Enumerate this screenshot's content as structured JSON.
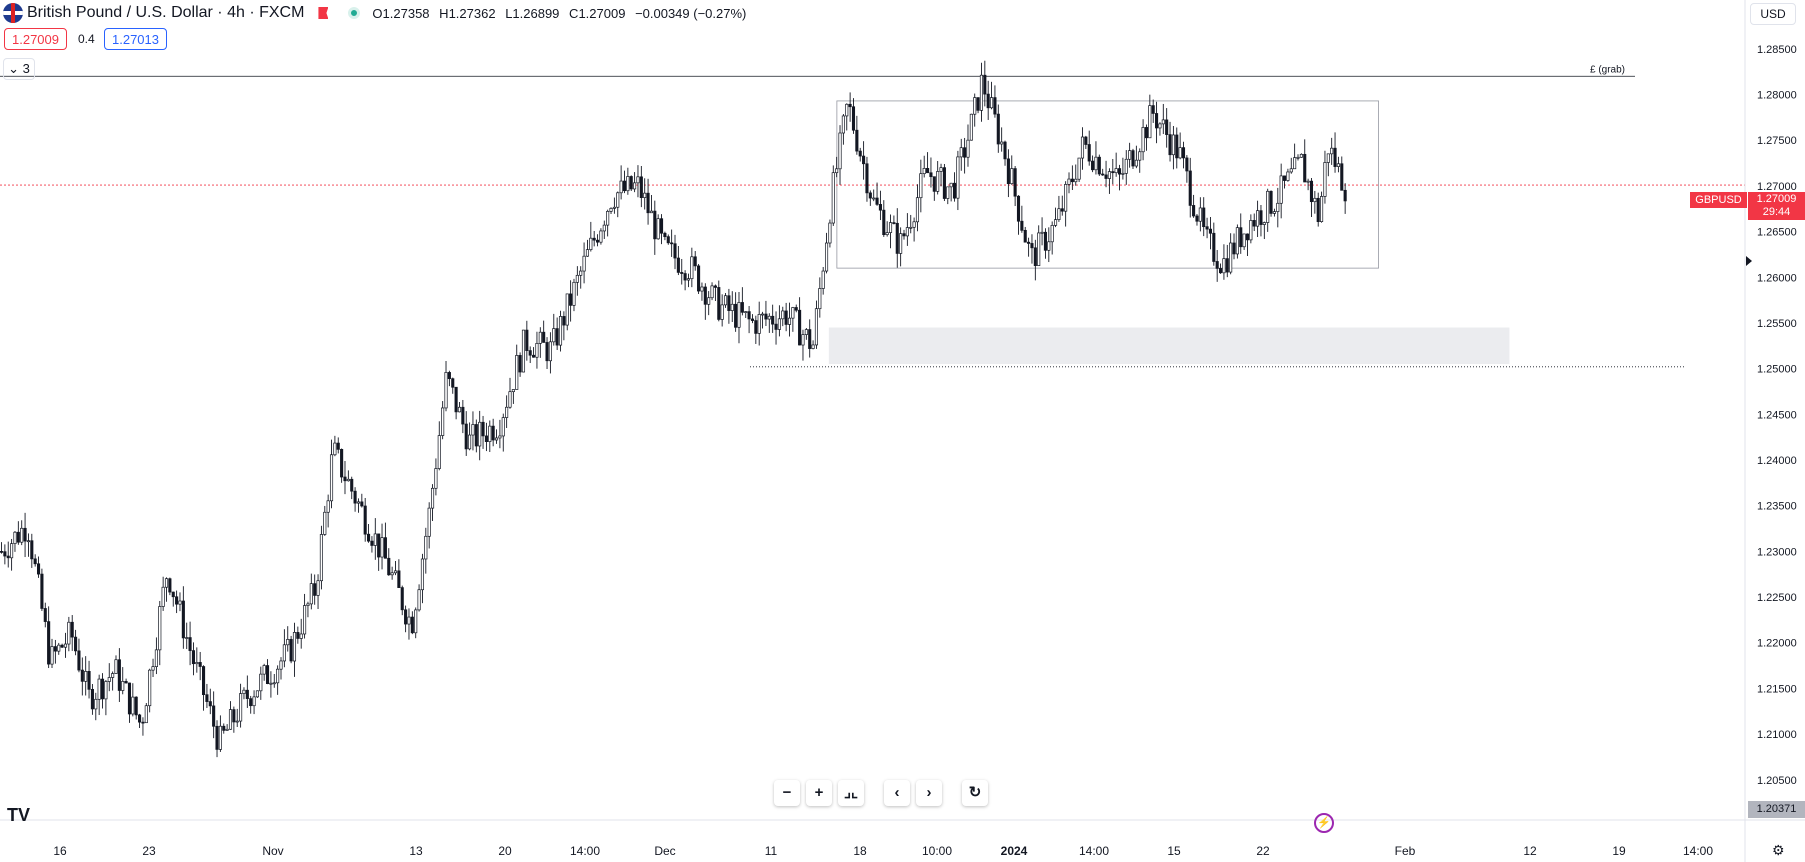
{
  "header": {
    "title": "British Pound / U.S. Dollar · 4h · FXCM",
    "ohlc": [
      {
        "k": "O",
        "v": "1.27358"
      },
      {
        "k": "H",
        "v": "1.27362"
      },
      {
        "k": "L",
        "v": "1.26899"
      },
      {
        "k": "C",
        "v": "1.27009"
      }
    ],
    "change": "−0.00349 (−0.27%)",
    "sell_price": "1.27009",
    "spread": "0.4",
    "buy_price": "1.27013",
    "indicators_count": "3",
    "currency": "USD"
  },
  "badges": {
    "symbol": "GBPUSD",
    "last_price": "1.27009",
    "countdown": "29:44",
    "low_price": "1.20371"
  },
  "drawings": {
    "level_label": "£ (grab)"
  },
  "nav": {
    "zoom_out": "−",
    "zoom_in": "+",
    "reset_scale": "⌟⌞",
    "scroll_left": "‹",
    "scroll_right": "›",
    "reset": "↻"
  },
  "colors": {
    "candle": "#131722",
    "last_price": "#f23645",
    "zone_fill": "#ebecef",
    "range_border": "#9598a1",
    "grid_text": "#131722"
  },
  "chart_data": {
    "type": "candlestick",
    "symbol": "GBPUSD",
    "timeframe": "4h",
    "y_ticks": [
      1.285,
      1.28,
      1.275,
      1.27,
      1.265,
      1.26,
      1.255,
      1.25,
      1.245,
      1.24,
      1.235,
      1.23,
      1.225,
      1.22,
      1.215,
      1.21,
      1.205
    ],
    "ylim": [
      1.2006,
      1.2875
    ],
    "x_labels": [
      "16",
      "23",
      "Nov",
      "13",
      "20",
      "14:00",
      "Dec",
      "11",
      "18",
      "10:00",
      "2024",
      "14:00",
      "15",
      "22",
      "Feb",
      "12",
      "19",
      "14:00"
    ],
    "close_path": [
      [
        0,
        1.23
      ],
      [
        0.015,
        1.233
      ],
      [
        0.028,
        1.218
      ],
      [
        0.04,
        1.221
      ],
      [
        0.05,
        1.214
      ],
      [
        0.065,
        1.217
      ],
      [
        0.08,
        1.211
      ],
      [
        0.095,
        1.228
      ],
      [
        0.11,
        1.218
      ],
      [
        0.125,
        1.209
      ],
      [
        0.14,
        1.214
      ],
      [
        0.165,
        1.219
      ],
      [
        0.18,
        1.226
      ],
      [
        0.19,
        1.241
      ],
      [
        0.205,
        1.235
      ],
      [
        0.22,
        1.229
      ],
      [
        0.235,
        1.222
      ],
      [
        0.245,
        1.234
      ],
      [
        0.255,
        1.249
      ],
      [
        0.268,
        1.242
      ],
      [
        0.285,
        1.244
      ],
      [
        0.3,
        1.253
      ],
      [
        0.315,
        1.252
      ],
      [
        0.335,
        1.262
      ],
      [
        0.35,
        1.269
      ],
      [
        0.365,
        1.27
      ],
      [
        0.38,
        1.263
      ],
      [
        0.395,
        1.261
      ],
      [
        0.41,
        1.257
      ],
      [
        0.43,
        1.255
      ],
      [
        0.45,
        1.256
      ],
      [
        0.465,
        1.2525
      ],
      [
        0.475,
        1.268
      ],
      [
        0.485,
        1.279
      ],
      [
        0.5,
        1.268
      ],
      [
        0.515,
        1.2635
      ],
      [
        0.53,
        1.2715
      ],
      [
        0.545,
        1.2695
      ],
      [
        0.555,
        1.276
      ],
      [
        0.562,
        1.2815
      ],
      [
        0.575,
        1.2735
      ],
      [
        0.59,
        1.262
      ],
      [
        0.605,
        1.266
      ],
      [
        0.62,
        1.2745
      ],
      [
        0.64,
        1.2705
      ],
      [
        0.66,
        1.278
      ],
      [
        0.675,
        1.2735
      ],
      [
        0.69,
        1.264
      ],
      [
        0.7,
        1.2615
      ],
      [
        0.715,
        1.266
      ],
      [
        0.73,
        1.2685
      ],
      [
        0.745,
        1.2725
      ],
      [
        0.755,
        1.2665
      ],
      [
        0.76,
        1.2745
      ],
      [
        0.77,
        1.27
      ]
    ],
    "candle_count": 400,
    "annotations": {
      "horizontal_level": {
        "price": 1.282,
        "label": "£ (grab)"
      },
      "range_box": {
        "top": 1.2793,
        "bottom": 1.261,
        "x_start": 0.475,
        "x_end": 0.79
      },
      "demand_zone": {
        "top": 1.2545,
        "bottom": 1.2505,
        "x_start": 0.475,
        "x_end": 0.865
      },
      "dotted_low": {
        "price": 1.2502
      },
      "last_price_line": {
        "price": 1.27009
      }
    }
  }
}
